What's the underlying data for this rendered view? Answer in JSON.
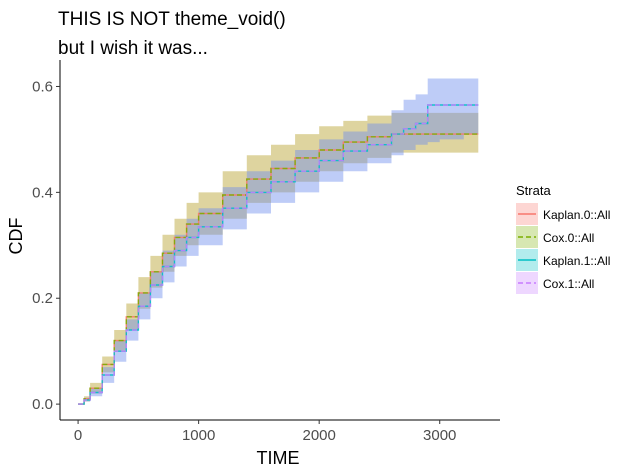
{
  "chart_data": {
    "type": "area",
    "title": "THIS IS NOT theme_void()",
    "subtitle": "but I wish it was...",
    "xlabel": "TIME",
    "ylabel": "CDF",
    "xlim": [
      -150,
      3500
    ],
    "ylim": [
      -0.03,
      0.65
    ],
    "xticks": [
      0,
      1000,
      2000,
      3000
    ],
    "yticks": [
      0.0,
      0.2,
      0.4,
      0.6
    ],
    "ytick_labels": [
      "0.0",
      "0.2",
      "0.4",
      "0.6"
    ],
    "grid": false,
    "legend": {
      "title": "Strata",
      "placement": "right",
      "entries": [
        {
          "label": "Kaplan.0::All",
          "color": "#F8766D",
          "linetype": "solid"
        },
        {
          "label": "Cox.0::All",
          "color": "#7CAE00",
          "linetype": "dashed"
        },
        {
          "label": "Kaplan.1::All",
          "color": "#00BFC4",
          "linetype": "solid"
        },
        {
          "label": "Cox.1::All",
          "color": "#C77CFF",
          "linetype": "dashed"
        }
      ]
    },
    "bands": [
      {
        "name": "group 0 confidence band",
        "color": "#b5a02a",
        "opacity": 0.45,
        "x": [
          0,
          50,
          100,
          200,
          300,
          400,
          500,
          600,
          700,
          800,
          900,
          1000,
          1200,
          1400,
          1600,
          1800,
          2000,
          2200,
          2400,
          2600,
          2800,
          3000,
          3320
        ],
        "lower": [
          0,
          0.005,
          0.02,
          0.06,
          0.1,
          0.14,
          0.18,
          0.22,
          0.25,
          0.28,
          0.3,
          0.32,
          0.35,
          0.38,
          0.4,
          0.42,
          0.44,
          0.455,
          0.465,
          0.475,
          0.475,
          0.475,
          0.475
        ],
        "upper": [
          0,
          0.015,
          0.04,
          0.09,
          0.14,
          0.19,
          0.24,
          0.28,
          0.32,
          0.35,
          0.38,
          0.4,
          0.44,
          0.47,
          0.49,
          0.51,
          0.525,
          0.535,
          0.545,
          0.55,
          0.55,
          0.55,
          0.55
        ]
      },
      {
        "name": "group 1 confidence band",
        "color": "#6f8fee",
        "opacity": 0.45,
        "x": [
          0,
          50,
          100,
          200,
          300,
          400,
          500,
          600,
          700,
          800,
          900,
          1000,
          1200,
          1400,
          1600,
          1800,
          2000,
          2200,
          2400,
          2600,
          2700,
          2800,
          2900,
          3000,
          3200,
          3320
        ],
        "lower": [
          0,
          0.005,
          0.015,
          0.04,
          0.08,
          0.12,
          0.16,
          0.2,
          0.23,
          0.26,
          0.28,
          0.3,
          0.33,
          0.36,
          0.38,
          0.4,
          0.42,
          0.44,
          0.455,
          0.47,
          0.48,
          0.49,
          0.495,
          0.5,
          0.51,
          0.51
        ],
        "upper": [
          0,
          0.012,
          0.03,
          0.07,
          0.12,
          0.16,
          0.21,
          0.25,
          0.29,
          0.32,
          0.35,
          0.37,
          0.41,
          0.44,
          0.46,
          0.48,
          0.5,
          0.515,
          0.53,
          0.555,
          0.575,
          0.585,
          0.615,
          0.615,
          0.615,
          0.615
        ]
      }
    ],
    "series": [
      {
        "name": "Kaplan.0::All",
        "color": "#F8766D",
        "dash": false,
        "x": [
          0,
          50,
          100,
          200,
          300,
          400,
          500,
          600,
          700,
          800,
          900,
          1000,
          1200,
          1400,
          1600,
          1800,
          2000,
          2200,
          2400,
          2600,
          2800,
          3000,
          3320
        ],
        "y": [
          0,
          0.01,
          0.03,
          0.075,
          0.12,
          0.165,
          0.21,
          0.25,
          0.285,
          0.315,
          0.34,
          0.36,
          0.395,
          0.425,
          0.445,
          0.465,
          0.48,
          0.495,
          0.505,
          0.51,
          0.51,
          0.51,
          0.51
        ]
      },
      {
        "name": "Cox.0::All",
        "color": "#7CAE00",
        "dash": true,
        "x": [
          0,
          50,
          100,
          200,
          300,
          400,
          500,
          600,
          700,
          800,
          900,
          1000,
          1200,
          1400,
          1600,
          1800,
          2000,
          2200,
          2400,
          2600,
          2800,
          3000,
          3320
        ],
        "y": [
          0,
          0.01,
          0.03,
          0.075,
          0.12,
          0.165,
          0.21,
          0.25,
          0.285,
          0.315,
          0.34,
          0.36,
          0.395,
          0.425,
          0.445,
          0.465,
          0.48,
          0.495,
          0.505,
          0.51,
          0.51,
          0.51,
          0.51
        ]
      },
      {
        "name": "Kaplan.1::All",
        "color": "#00BFC4",
        "dash": false,
        "x": [
          0,
          50,
          100,
          200,
          300,
          400,
          500,
          600,
          700,
          800,
          900,
          1000,
          1200,
          1400,
          1600,
          1800,
          2000,
          2200,
          2400,
          2600,
          2700,
          2800,
          2900,
          3000,
          3320
        ],
        "y": [
          0,
          0.008,
          0.022,
          0.055,
          0.1,
          0.14,
          0.185,
          0.225,
          0.26,
          0.29,
          0.315,
          0.335,
          0.37,
          0.4,
          0.42,
          0.44,
          0.46,
          0.478,
          0.49,
          0.51,
          0.52,
          0.53,
          0.565,
          0.565,
          0.565
        ]
      },
      {
        "name": "Cox.1::All",
        "color": "#C77CFF",
        "dash": true,
        "x": [
          0,
          50,
          100,
          200,
          300,
          400,
          500,
          600,
          700,
          800,
          900,
          1000,
          1200,
          1400,
          1600,
          1800,
          2000,
          2200,
          2400,
          2600,
          2700,
          2800,
          2900,
          3000,
          3320
        ],
        "y": [
          0,
          0.008,
          0.022,
          0.055,
          0.1,
          0.14,
          0.185,
          0.225,
          0.26,
          0.29,
          0.315,
          0.335,
          0.37,
          0.4,
          0.42,
          0.44,
          0.46,
          0.478,
          0.49,
          0.51,
          0.52,
          0.53,
          0.565,
          0.565,
          0.565
        ]
      }
    ]
  }
}
